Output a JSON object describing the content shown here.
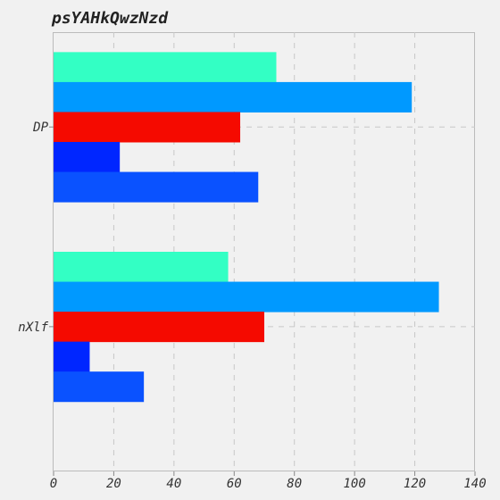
{
  "chart_data": {
    "type": "bar",
    "orientation": "horizontal",
    "title": "psYAHkQwzNzd",
    "xlabel": "",
    "ylabel": "",
    "categories": [
      "DP",
      "nXlf"
    ],
    "xlim": [
      0,
      140
    ],
    "x_ticks": [
      0,
      20,
      40,
      60,
      80,
      100,
      120,
      140
    ],
    "grid": true,
    "legend": "none",
    "series": [
      {
        "color": "#33ffc4",
        "values": [
          74,
          58
        ]
      },
      {
        "color": "#0099ff",
        "values": [
          119,
          128
        ]
      },
      {
        "color": "#f50a00",
        "values": [
          62,
          70
        ]
      },
      {
        "color": "#0026ff",
        "values": [
          22,
          12
        ]
      },
      {
        "color": "#0a52ff",
        "values": [
          68,
          30
        ]
      }
    ]
  }
}
